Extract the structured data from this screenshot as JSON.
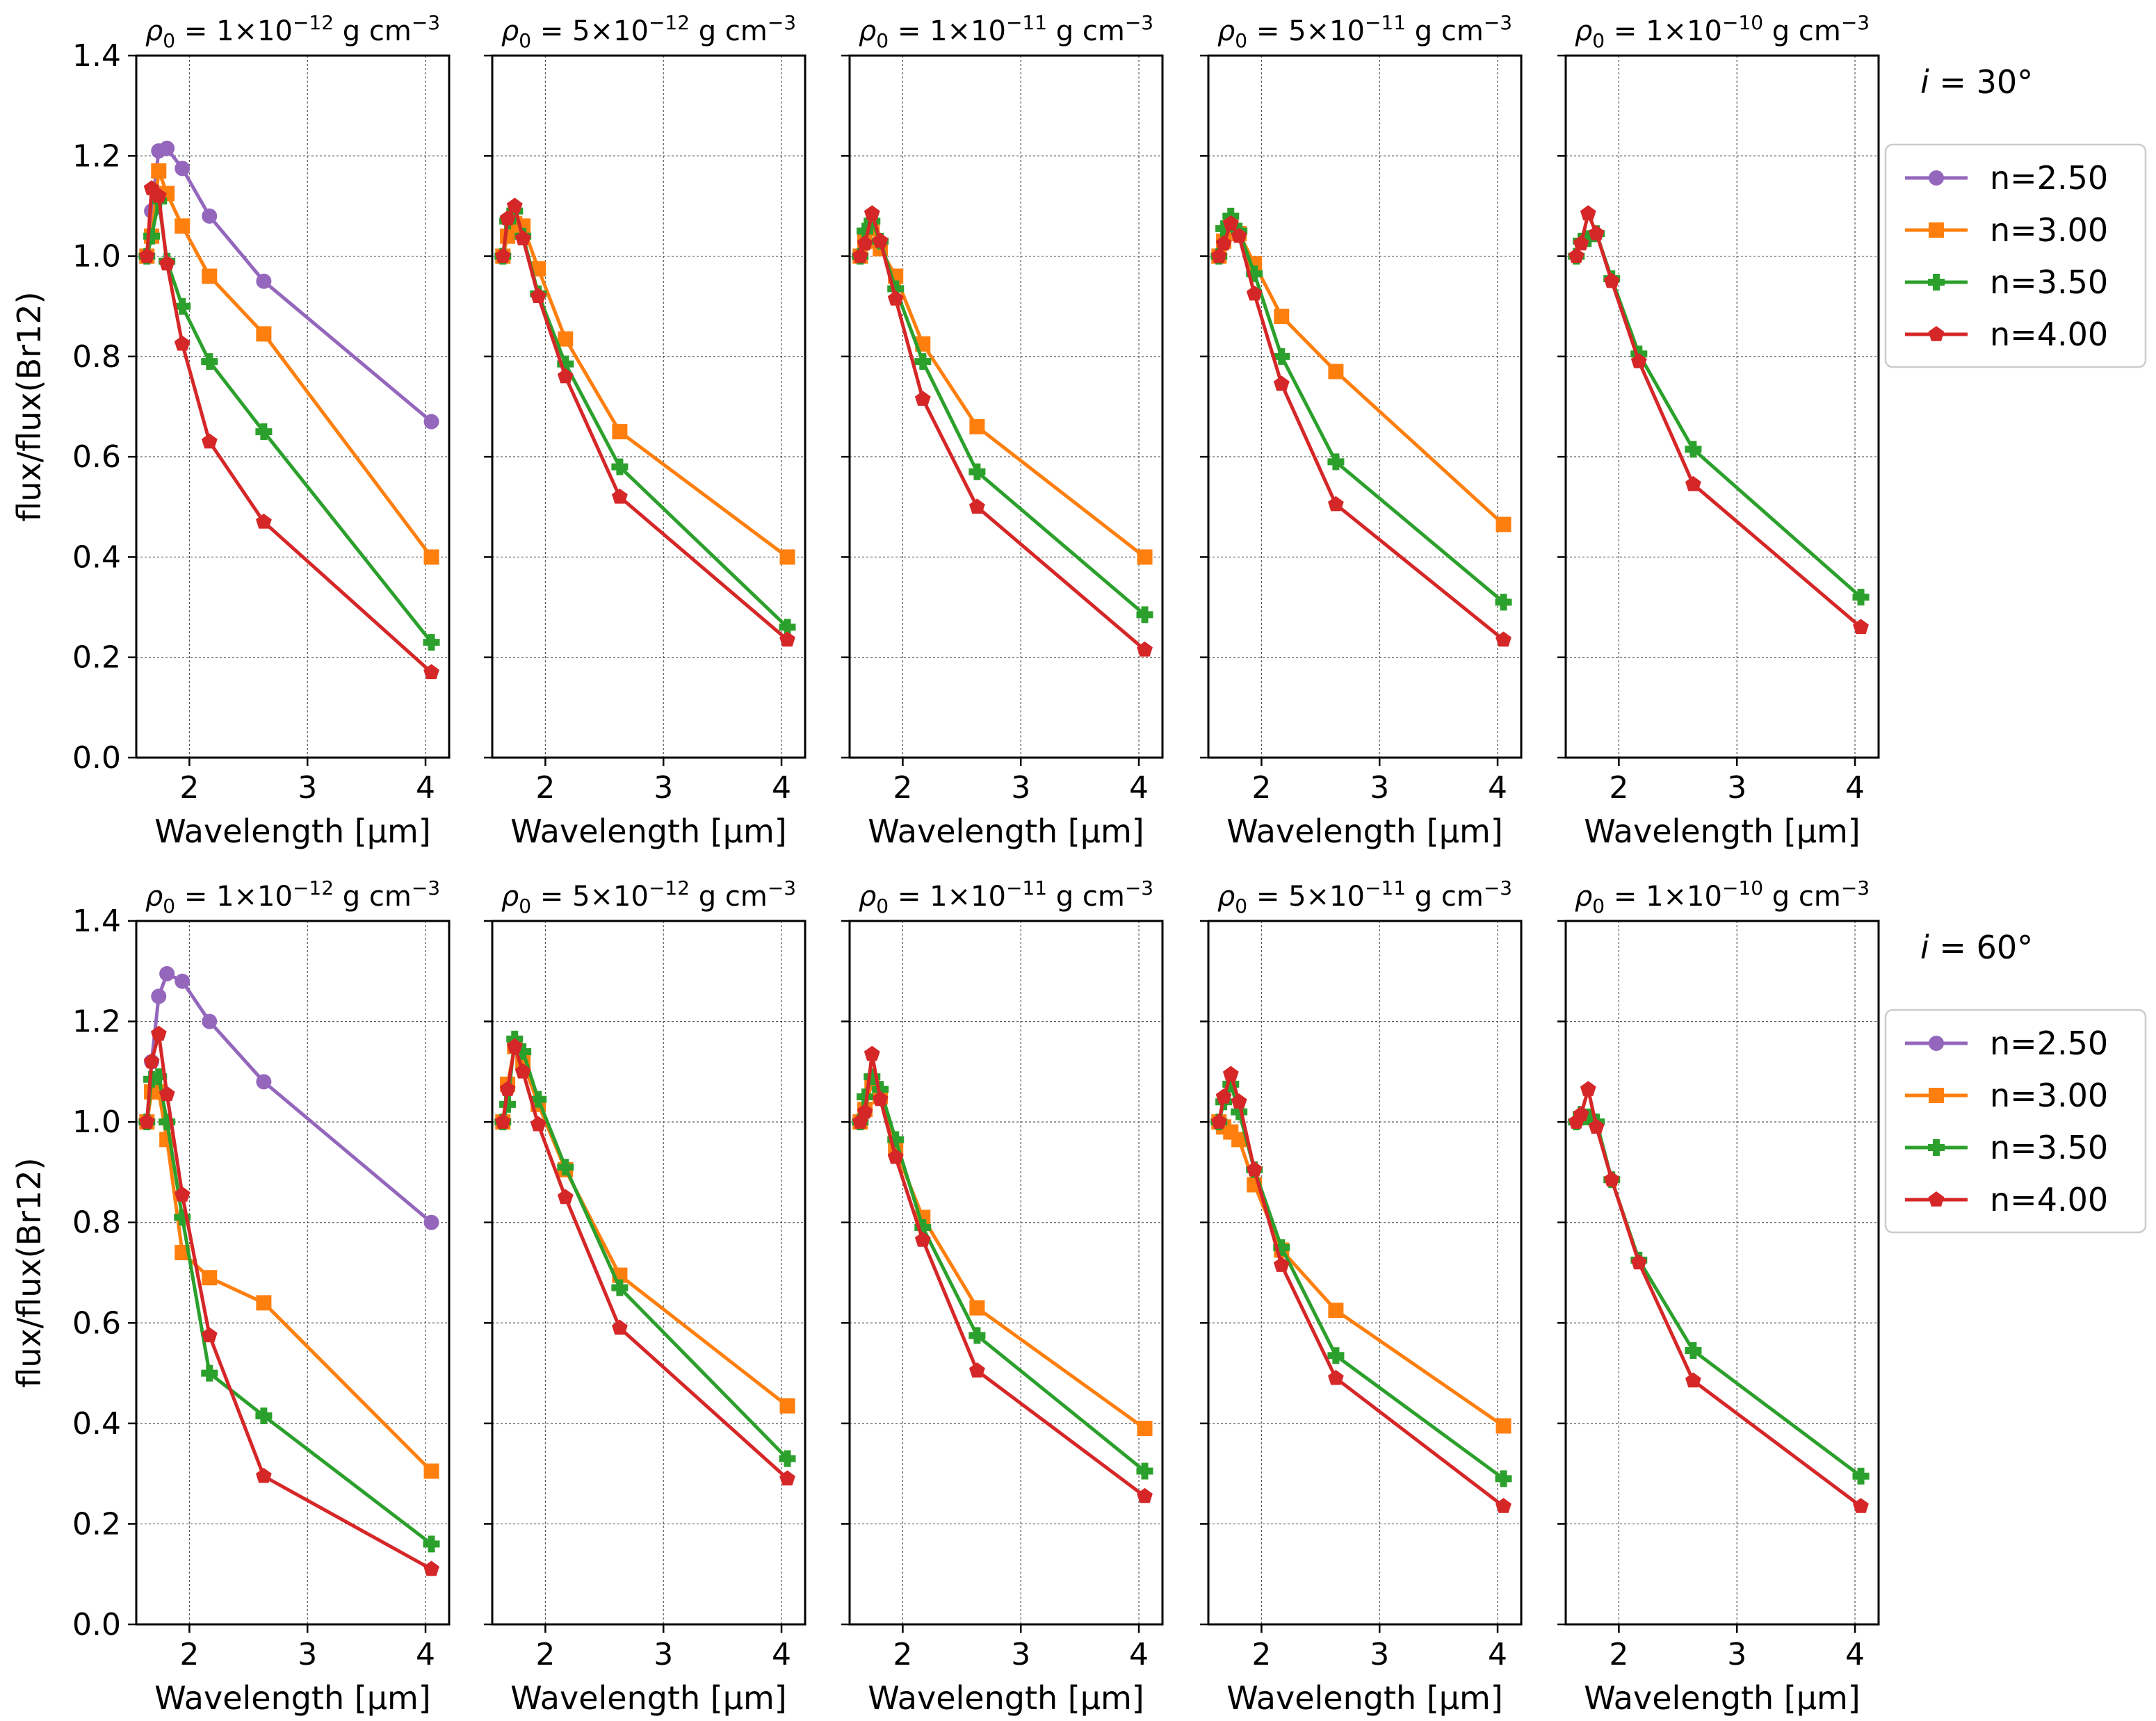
{
  "colors": {
    "n=2.50": "#9467bd",
    "n=3.00": "#ff7f0e",
    "n=3.50": "#2ca02c",
    "n=4.00": "#d62728"
  },
  "markers": {
    "n=2.50": "circle",
    "n=3.00": "square",
    "n=3.50": "plus",
    "n=4.00": "pentagon"
  },
  "columns": [
    {
      "coef": "1",
      "exp": "−12",
      "unit": "g cm",
      "unit_exp": "−3"
    },
    {
      "coef": "5",
      "exp": "−12",
      "unit": "g cm",
      "unit_exp": "−3"
    },
    {
      "coef": "1",
      "exp": "−11",
      "unit": "g cm",
      "unit_exp": "−3"
    },
    {
      "coef": "5",
      "exp": "−11",
      "unit": "g cm",
      "unit_exp": "−3"
    },
    {
      "coef": "1",
      "exp": "−10",
      "unit": "g cm",
      "unit_exp": "−3"
    }
  ],
  "chart_data": [
    {
      "type": "line",
      "inclination": "30°",
      "xlabel": "Wavelength [μm]",
      "ylabel": "flux/flux(Br12)",
      "xlim": [
        1.55,
        4.2
      ],
      "ylim": [
        0.0,
        1.4
      ],
      "xticks": [
        "2",
        "3",
        "4"
      ],
      "yticks": [
        "0.0",
        "0.2",
        "0.4",
        "0.6",
        "0.8",
        "1.0",
        "1.2",
        "1.4"
      ],
      "grid": true,
      "legend": [
        "n=2.50",
        "n=3.00",
        "n=3.50",
        "n=4.00"
      ],
      "legend_position": "right",
      "x": [
        1.64,
        1.68,
        1.74,
        1.81,
        1.94,
        2.17,
        2.63,
        4.05
      ],
      "panels": [
        {
          "series": [
            {
              "name": "n=2.50",
              "values": [
                1.0,
                1.09,
                1.21,
                1.215,
                1.175,
                1.08,
                0.95,
                0.67
              ]
            },
            {
              "name": "n=3.00",
              "values": [
                1.0,
                1.04,
                1.17,
                1.125,
                1.06,
                0.96,
                0.845,
                0.4
              ]
            },
            {
              "name": "n=3.50",
              "values": [
                1.0,
                1.04,
                1.11,
                0.99,
                0.9,
                0.79,
                0.65,
                0.23
              ]
            },
            {
              "name": "n=4.00",
              "values": [
                1.0,
                1.135,
                1.12,
                0.985,
                0.825,
                0.63,
                0.47,
                0.17
              ]
            }
          ]
        },
        {
          "series": [
            {
              "name": "n=3.00",
              "values": [
                1.0,
                1.04,
                1.065,
                1.06,
                0.975,
                0.835,
                0.65,
                0.4
              ]
            },
            {
              "name": "n=3.50",
              "values": [
                1.0,
                1.07,
                1.09,
                1.04,
                0.925,
                0.785,
                0.58,
                0.26
              ]
            },
            {
              "name": "n=4.00",
              "values": [
                1.0,
                1.075,
                1.1,
                1.035,
                0.92,
                0.76,
                0.52,
                0.235
              ]
            }
          ]
        },
        {
          "series": [
            {
              "name": "n=3.00",
              "values": [
                1.0,
                1.03,
                1.055,
                1.015,
                0.96,
                0.825,
                0.66,
                0.4
              ]
            },
            {
              "name": "n=3.50",
              "values": [
                1.0,
                1.05,
                1.07,
                1.03,
                0.935,
                0.79,
                0.57,
                0.285
              ]
            },
            {
              "name": "n=4.00",
              "values": [
                1.0,
                1.025,
                1.085,
                1.03,
                0.915,
                0.715,
                0.5,
                0.215
              ]
            }
          ]
        },
        {
          "series": [
            {
              "name": "n=3.00",
              "values": [
                1.0,
                1.03,
                1.06,
                1.045,
                0.985,
                0.88,
                0.77,
                0.465
              ]
            },
            {
              "name": "n=3.50",
              "values": [
                1.0,
                1.055,
                1.08,
                1.05,
                0.965,
                0.8,
                0.59,
                0.31
              ]
            },
            {
              "name": "n=4.00",
              "values": [
                1.0,
                1.025,
                1.065,
                1.04,
                0.925,
                0.745,
                0.505,
                0.235
              ]
            }
          ]
        },
        {
          "series": [
            {
              "name": "n=3.50",
              "values": [
                1.0,
                1.03,
                1.035,
                1.045,
                0.955,
                0.805,
                0.615,
                0.32
              ]
            },
            {
              "name": "n=4.00",
              "values": [
                1.0,
                1.025,
                1.085,
                1.045,
                0.95,
                0.79,
                0.545,
                0.26
              ]
            }
          ]
        }
      ]
    },
    {
      "type": "line",
      "inclination": "60°",
      "xlabel": "Wavelength [μm]",
      "ylabel": "flux/flux(Br12)",
      "xlim": [
        1.55,
        4.2
      ],
      "ylim": [
        0.0,
        1.4
      ],
      "xticks": [
        "2",
        "3",
        "4"
      ],
      "yticks": [
        "0.0",
        "0.2",
        "0.4",
        "0.6",
        "0.8",
        "1.0",
        "1.2",
        "1.4"
      ],
      "grid": true,
      "legend": [
        "n=2.50",
        "n=3.00",
        "n=3.50",
        "n=4.00"
      ],
      "legend_position": "right",
      "x": [
        1.64,
        1.68,
        1.74,
        1.81,
        1.94,
        2.17,
        2.63,
        4.05
      ],
      "panels": [
        {
          "series": [
            {
              "name": "n=2.50",
              "values": [
                1.0,
                1.12,
                1.25,
                1.295,
                1.28,
                1.2,
                1.08,
                0.8
              ]
            },
            {
              "name": "n=3.00",
              "values": [
                1.0,
                1.06,
                1.06,
                0.965,
                0.74,
                0.69,
                0.64,
                0.305
              ]
            },
            {
              "name": "n=3.50",
              "values": [
                1.0,
                1.085,
                1.09,
                1.0,
                0.81,
                0.5,
                0.415,
                0.16
              ]
            },
            {
              "name": "n=4.00",
              "values": [
                1.0,
                1.12,
                1.175,
                1.055,
                0.855,
                0.575,
                0.295,
                0.11
              ]
            }
          ]
        },
        {
          "series": [
            {
              "name": "n=3.00",
              "values": [
                1.0,
                1.075,
                1.15,
                1.12,
                1.035,
                0.905,
                0.695,
                0.435
              ]
            },
            {
              "name": "n=3.50",
              "values": [
                1.0,
                1.035,
                1.165,
                1.14,
                1.045,
                0.91,
                0.67,
                0.33
              ]
            },
            {
              "name": "n=4.00",
              "values": [
                1.0,
                1.065,
                1.15,
                1.1,
                0.995,
                0.85,
                0.59,
                0.29
              ]
            }
          ]
        },
        {
          "series": [
            {
              "name": "n=3.00",
              "values": [
                1.0,
                1.025,
                1.08,
                1.05,
                0.945,
                0.81,
                0.63,
                0.39
              ]
            },
            {
              "name": "n=3.50",
              "values": [
                1.0,
                1.05,
                1.09,
                1.065,
                0.965,
                0.79,
                0.575,
                0.305
              ]
            },
            {
              "name": "n=4.00",
              "values": [
                1.0,
                1.02,
                1.135,
                1.045,
                0.93,
                0.765,
                0.505,
                0.255
              ]
            }
          ]
        },
        {
          "series": [
            {
              "name": "n=3.00",
              "values": [
                1.0,
                0.99,
                0.98,
                0.965,
                0.875,
                0.745,
                0.625,
                0.395
              ]
            },
            {
              "name": "n=3.50",
              "values": [
                1.0,
                1.04,
                1.075,
                1.02,
                0.905,
                0.75,
                0.535,
                0.29
              ]
            },
            {
              "name": "n=4.00",
              "values": [
                1.0,
                1.05,
                1.095,
                1.04,
                0.905,
                0.715,
                0.49,
                0.235
              ]
            }
          ]
        },
        {
          "series": [
            {
              "name": "n=3.50",
              "values": [
                1.0,
                1.015,
                1.01,
                1.0,
                0.885,
                0.725,
                0.545,
                0.295
              ]
            },
            {
              "name": "n=4.00",
              "values": [
                1.0,
                1.015,
                1.065,
                0.99,
                0.885,
                0.72,
                0.485,
                0.235
              ]
            }
          ]
        }
      ]
    }
  ]
}
